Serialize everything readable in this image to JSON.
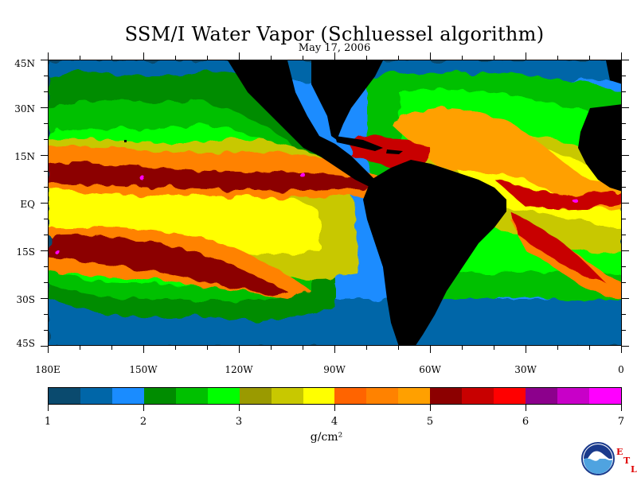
{
  "title": "SSM/I Water Vapor (Schluessel algorithm)",
  "subtitle": "May 17, 2006",
  "lat_labels": [
    "45N",
    "30N",
    "15N",
    "EQ",
    "15S",
    "30S",
    "45S"
  ],
  "lon_labels": [
    "180E",
    "150W",
    "120W",
    "90W",
    "60W",
    "30W",
    "0"
  ],
  "colorbar": {
    "labels": [
      "1",
      "2",
      "3",
      "4",
      "5",
      "6",
      "7"
    ],
    "units": "g/cm²",
    "colors": [
      "#0a4a6e",
      "#0066a8",
      "#1a8cff",
      "#008c00",
      "#00c000",
      "#00ff00",
      "#9a9a00",
      "#c8c800",
      "#ffff00",
      "#ff6400",
      "#ff8200",
      "#ffa000",
      "#8c0000",
      "#c80000",
      "#ff0000",
      "#8c008c",
      "#c800c8",
      "#ff00ff"
    ]
  },
  "logo": {
    "name": "NOAA",
    "letters": [
      "E",
      "T",
      "L"
    ]
  }
}
